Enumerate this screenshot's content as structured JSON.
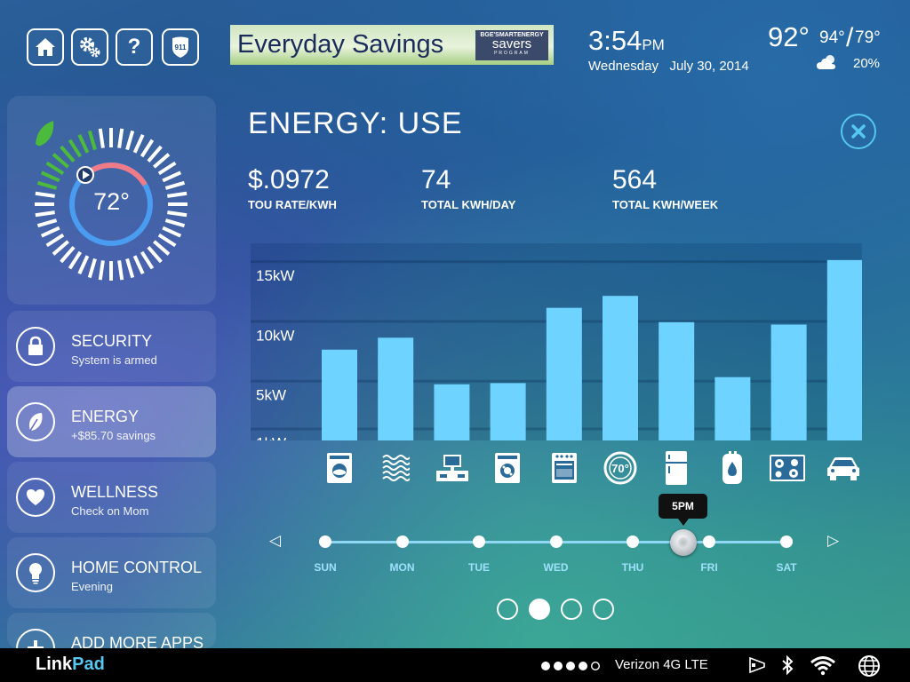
{
  "header": {
    "banner": {
      "title": "Everyday Savings",
      "brand_line1": "BGE'SMARTENERGY",
      "brand_line2": "savers",
      "brand_line3": "PROGRAM"
    },
    "clock": {
      "time": "3:54",
      "ampm": "PM",
      "weekday": "Wednesday",
      "date": "July 30, 2014"
    },
    "weather": {
      "current": "92°",
      "high": "94°",
      "low": "79°",
      "precip": "20%",
      "icon": "partly-cloudy-icon"
    },
    "buttons": [
      {
        "name": "home-button",
        "icon": "home-icon"
      },
      {
        "name": "settings-button",
        "icon": "gears-icon"
      },
      {
        "name": "help-button",
        "icon": "question-icon",
        "glyph": "?"
      },
      {
        "name": "emergency-911-button",
        "icon": "shield-911-icon",
        "glyph": "911"
      }
    ]
  },
  "thermostat": {
    "temperature": "72°"
  },
  "sidebar": {
    "items": [
      {
        "title": "SECURITY",
        "subtitle": "System is armed",
        "icon": "lock-icon"
      },
      {
        "title": "ENERGY",
        "subtitle": "+$85.70 savings",
        "icon": "leaf-icon",
        "active": true
      },
      {
        "title": "WELLNESS",
        "subtitle": "Check on Mom",
        "icon": "heart-icon"
      },
      {
        "title": "HOME CONTROL",
        "subtitle": "Evening",
        "icon": "bulb-icon"
      },
      {
        "title": "ADD MORE APPS",
        "subtitle": "",
        "icon": "plus-icon"
      }
    ]
  },
  "main": {
    "title": "ENERGY: USE",
    "stats": [
      {
        "value": "$.0972",
        "label": "TOU RATE/KWH"
      },
      {
        "value": "74",
        "label": "TOTAL KWH/DAY"
      },
      {
        "value": "564",
        "label": "TOTAL KWH/WEEK"
      }
    ]
  },
  "chart_data": {
    "type": "bar",
    "categories": [
      "washer",
      "dryer",
      "entertainment",
      "dishwasher",
      "oven",
      "thermostat",
      "refrigerator",
      "water heater",
      "cooktop",
      "car"
    ],
    "values": [
      7.6,
      8.6,
      4.7,
      4.8,
      11.1,
      12.1,
      9.9,
      5.3,
      9.7,
      15.1
    ],
    "yticks": [
      "15kW",
      "10kW",
      "5kW",
      "1kW"
    ],
    "ytick_values": [
      15,
      10,
      5,
      1
    ],
    "ylim": [
      0,
      16.5
    ],
    "bar_color": "#6fd3ff",
    "appliance_labels": [
      "",
      "",
      "",
      "",
      "",
      "70°",
      "",
      "",
      "",
      ""
    ]
  },
  "timeline": {
    "days": [
      "SUN",
      "MON",
      "TUE",
      "WED",
      "THU",
      "FRI",
      "SAT"
    ],
    "current_time_label": "5PM",
    "prev_glyph": "◁",
    "next_glyph": "▷"
  },
  "pager": {
    "count": 4,
    "active_index": 1
  },
  "statusbar": {
    "brand_link": "Link",
    "brand_pad": "Pad",
    "carrier": "Verizon 4G LTE",
    "signal_bars": 4
  }
}
